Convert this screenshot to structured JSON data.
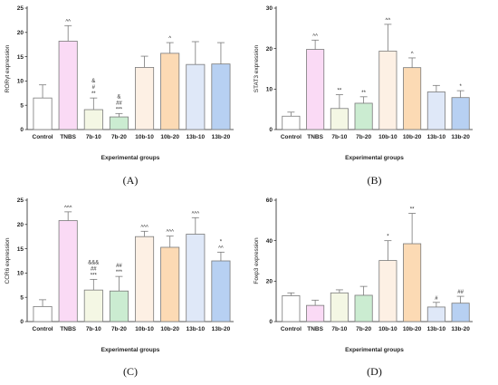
{
  "figure": {
    "category_colors": [
      "#ffffff",
      "#fadaf5",
      "#f4f7e4",
      "#cbecd1",
      "#fdf0e4",
      "#fcdab4",
      "#dfe8f8",
      "#b7d0f2"
    ],
    "bar_stroke": "#7a7a7a"
  },
  "chart_data": [
    {
      "type": "bar",
      "panel_label": "(A)",
      "ylabel": "RORγt expression",
      "xlabel": "Experimental groups",
      "categories": [
        "Control",
        "TNBS",
        "7b-10",
        "7b-20",
        "10b-10",
        "10b-20",
        "13b-10",
        "13b-20"
      ],
      "values": [
        6.5,
        18.2,
        4.1,
        2.6,
        12.8,
        15.7,
        13.4,
        13.5
      ],
      "errors": [
        2.7,
        3.2,
        2.4,
        0.7,
        2.3,
        2.2,
        4.7,
        4.4
      ],
      "annotations": [
        [],
        [
          "^^"
        ],
        [
          "&",
          "#",
          "**"
        ],
        [
          "&",
          "##",
          "***"
        ],
        [],
        [
          "^"
        ],
        [],
        []
      ],
      "ylim": [
        0,
        25
      ],
      "yticks": [
        0,
        5,
        10,
        15,
        20,
        25
      ]
    },
    {
      "type": "bar",
      "panel_label": "(B)",
      "ylabel": "STAT3 expression",
      "xlabel": "Experimental groups",
      "categories": [
        "Control",
        "TNBS",
        "7b-10",
        "7b-20",
        "10b-10",
        "10b-20",
        "13b-10",
        "13b-20"
      ],
      "values": [
        3.3,
        19.8,
        5.2,
        6.5,
        19.4,
        15.3,
        9.3,
        7.9
      ],
      "errors": [
        1.0,
        2.3,
        3.4,
        1.6,
        6.6,
        2.4,
        1.6,
        1.7
      ],
      "annotations": [
        [],
        [
          "^^"
        ],
        [
          "**"
        ],
        [
          "**"
        ],
        [
          "^^"
        ],
        [
          "^"
        ],
        [],
        [
          "*"
        ]
      ],
      "ylim": [
        0,
        30
      ],
      "yticks": [
        0,
        10,
        20,
        30
      ]
    },
    {
      "type": "bar",
      "panel_label": "(C)",
      "ylabel": "CCR6 expression",
      "xlabel": "Experimental groups",
      "categories": [
        "Control",
        "TNBS",
        "7b-10",
        "7b-20",
        "10b-10",
        "10b-20",
        "13b-10",
        "13b-20"
      ],
      "values": [
        3.1,
        20.8,
        6.5,
        6.3,
        17.5,
        15.3,
        18.0,
        12.5
      ],
      "errors": [
        1.4,
        1.8,
        2.2,
        3.0,
        1.1,
        2.3,
        3.4,
        1.8
      ],
      "annotations": [
        [],
        [
          "^^^"
        ],
        [
          "&&&",
          "##",
          "***"
        ],
        [
          "##",
          "***"
        ],
        [
          "^^^"
        ],
        [
          "^^^"
        ],
        [
          "^^^"
        ],
        [
          "*",
          "^^"
        ]
      ],
      "ylim": [
        0,
        25
      ],
      "yticks": [
        0,
        5,
        10,
        15,
        20,
        25
      ]
    },
    {
      "type": "bar",
      "panel_label": "(D)",
      "ylabel": "Foxp3 expression",
      "xlabel": "Experimental groups",
      "categories": [
        "Control",
        "TNBS",
        "7b-10",
        "7b-20",
        "10b-10",
        "10b-20",
        "13b-10",
        "13b-20"
      ],
      "values": [
        12.8,
        8.0,
        14.2,
        13.0,
        30.2,
        38.5,
        7.2,
        9.1
      ],
      "errors": [
        1.4,
        2.6,
        1.5,
        4.4,
        9.8,
        15.0,
        2.3,
        3.4
      ],
      "annotations": [
        [],
        [],
        [],
        [],
        [
          "*"
        ],
        [
          "**"
        ],
        [
          "#"
        ],
        [
          "##"
        ]
      ],
      "ylim": [
        0,
        60
      ],
      "yticks": [
        0,
        20,
        40,
        60
      ]
    }
  ]
}
